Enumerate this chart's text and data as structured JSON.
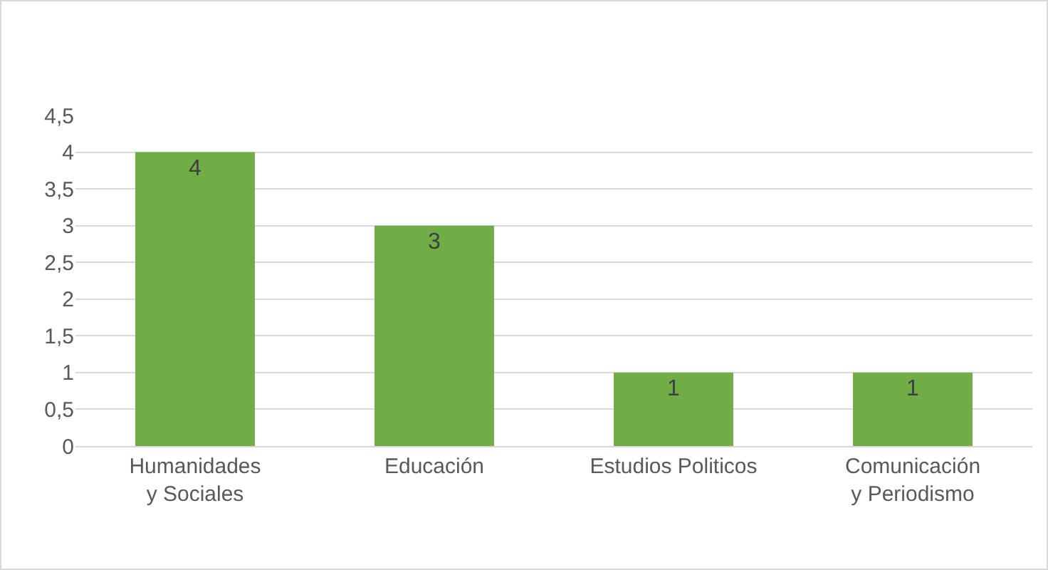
{
  "chart_data": {
    "type": "bar",
    "categories": [
      "Humanidades y Sociales",
      "Educación",
      "Estudios Politicos",
      "Comunicación y Periodismo"
    ],
    "values": [
      4,
      3,
      1,
      1
    ],
    "color": "#70ad47",
    "ylim": [
      0,
      4.5
    ],
    "yticks": [
      0,
      {
        "value": 0.5,
        "label": "0,5"
      },
      1,
      {
        "value": 1.5,
        "label": "1,5"
      },
      2,
      {
        "value": 2.5,
        "label": "2,5"
      },
      3,
      {
        "value": 3.5,
        "label": "3,5"
      },
      4,
      {
        "value": 4.5,
        "label": "4,5"
      }
    ],
    "grid": "y",
    "data_labels": true
  }
}
